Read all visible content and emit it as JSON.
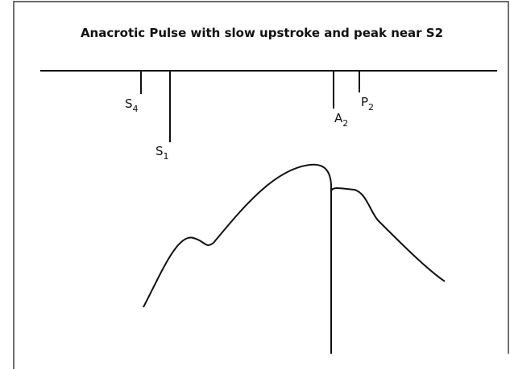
{
  "title": "Anacrotic Pulse with slow upstroke and peak near S2",
  "labels": [
    {
      "base": "S",
      "sub": "4"
    },
    {
      "base": "S",
      "sub": "1"
    },
    {
      "base": "A",
      "sub": "2"
    },
    {
      "base": "P",
      "sub": "2"
    }
  ]
}
